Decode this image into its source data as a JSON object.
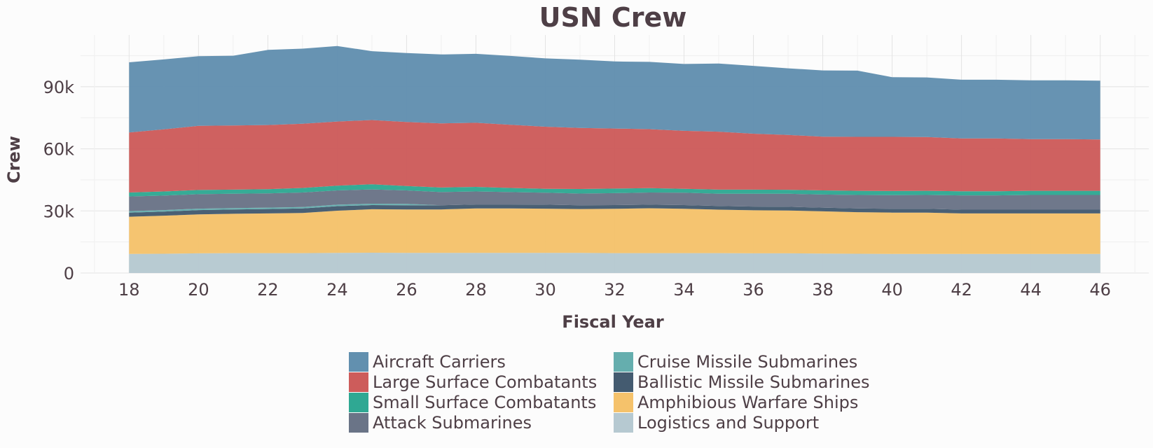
{
  "chart_data": {
    "type": "area",
    "stacked": true,
    "title": "USN  Crew",
    "xlabel": "Fiscal Year",
    "ylabel": "Crew",
    "x": [
      18,
      19,
      20,
      21,
      22,
      23,
      24,
      25,
      26,
      27,
      28,
      29,
      30,
      31,
      32,
      33,
      34,
      35,
      36,
      37,
      38,
      39,
      40,
      41,
      42,
      43,
      44,
      45,
      46
    ],
    "xticks": [
      18,
      20,
      22,
      24,
      26,
      28,
      30,
      32,
      34,
      36,
      38,
      40,
      42,
      44,
      46
    ],
    "xlim": [
      16.6,
      47.4
    ],
    "ylim": [
      0,
      115000
    ],
    "yticks": [
      0,
      30000,
      60000,
      90000
    ],
    "ytick_labels": [
      "0",
      "30k",
      "60k",
      "90k"
    ],
    "grid": true,
    "legend_position": "bottom",
    "series": [
      {
        "name": "Logistics and Support",
        "color": "#b6c9d1",
        "values": [
          9200,
          9300,
          9500,
          9600,
          9600,
          9600,
          9700,
          9800,
          9700,
          9700,
          9700,
          9700,
          9700,
          9700,
          9600,
          9600,
          9600,
          9600,
          9500,
          9500,
          9400,
          9300,
          9200,
          9200,
          9200,
          9200,
          9200,
          9200,
          9200
        ]
      },
      {
        "name": "Amphibious Warfare Ships",
        "color": "#f5c26b",
        "values": [
          18000,
          18400,
          18800,
          19000,
          19200,
          19400,
          20400,
          21000,
          21000,
          21000,
          21500,
          21500,
          21400,
          21200,
          21400,
          21700,
          21400,
          21000,
          20800,
          20700,
          20400,
          20100,
          20000,
          20000,
          19600,
          19600,
          19600,
          19600,
          19600
        ]
      },
      {
        "name": "Ballistic Missile Submarines",
        "color": "#445b70",
        "values": [
          2000,
          2000,
          2100,
          2100,
          2100,
          2200,
          2200,
          2000,
          2000,
          2000,
          1900,
          1900,
          1900,
          1800,
          1800,
          1700,
          1800,
          1800,
          1800,
          1800,
          1800,
          1800,
          1800,
          1800,
          1800,
          1800,
          1800,
          1800,
          1800
        ]
      },
      {
        "name": "Cruise Missile Submarines",
        "color": "#65aeae",
        "values": [
          700,
          700,
          700,
          700,
          700,
          700,
          700,
          700,
          700,
          0,
          0,
          0,
          0,
          0,
          0,
          0,
          0,
          0,
          0,
          0,
          0,
          0,
          0,
          0,
          0,
          0,
          0,
          0,
          0
        ]
      },
      {
        "name": "Attack Submarines",
        "color": "#6a7487",
        "values": [
          7100,
          7000,
          7000,
          6900,
          6900,
          7000,
          6900,
          6900,
          6500,
          6400,
          6300,
          6000,
          5800,
          5700,
          5800,
          5900,
          6000,
          5900,
          6200,
          6300,
          6300,
          6500,
          6600,
          6700,
          6900,
          6900,
          7100,
          7100,
          7100
        ]
      },
      {
        "name": "Small Surface Combatants",
        "color": "#2fa893",
        "values": [
          1900,
          2000,
          2000,
          2000,
          2000,
          2200,
          2300,
          2500,
          2100,
          2200,
          2200,
          2000,
          1900,
          2200,
          2200,
          2100,
          1900,
          2000,
          2000,
          1900,
          2000,
          2000,
          2000,
          2000,
          2000,
          2000,
          2000,
          2000,
          2000
        ]
      },
      {
        "name": "Large Surface Combatants",
        "color": "#cd5c5b",
        "values": [
          29000,
          30000,
          31000,
          31000,
          31000,
          31000,
          31000,
          31000,
          31000,
          31000,
          31000,
          30500,
          30000,
          29500,
          29000,
          28500,
          28000,
          28000,
          27000,
          26500,
          26000,
          26100,
          26200,
          26000,
          25500,
          25500,
          25000,
          25000,
          24800
        ]
      },
      {
        "name": "Aircraft Carriers",
        "color": "#6290af",
        "values": [
          33900,
          33800,
          33700,
          33700,
          36300,
          36300,
          36500,
          33300,
          33300,
          33300,
          33300,
          33300,
          33000,
          33000,
          32400,
          32500,
          32300,
          32900,
          32800,
          32200,
          32000,
          32000,
          28800,
          28800,
          28400,
          28400,
          28400,
          28400,
          28400
        ]
      }
    ]
  },
  "legend": {
    "col1": [
      "Aircraft Carriers",
      "Large Surface Combatants",
      "Small Surface Combatants",
      "Attack Submarines"
    ],
    "col2": [
      "Cruise Missile Submarines",
      "Ballistic Missile Submarines",
      "Amphibious Warfare Ships",
      "Logistics and Support"
    ]
  }
}
